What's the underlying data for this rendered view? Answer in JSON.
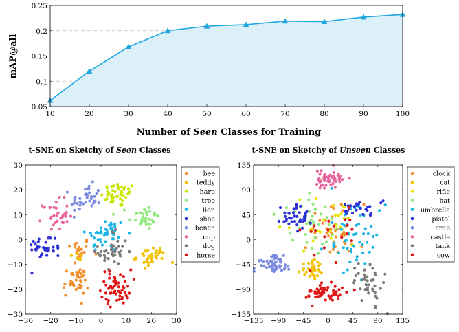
{
  "chart_data": [
    {
      "type": "area",
      "xlabel_parts": [
        "Number of ",
        "Seen",
        " Classes for Training"
      ],
      "ylabel": "mAP@all",
      "x": [
        10,
        20,
        30,
        40,
        50,
        60,
        70,
        80,
        90,
        100
      ],
      "values": [
        0.062,
        0.12,
        0.168,
        0.2,
        0.209,
        0.212,
        0.219,
        0.218,
        0.227,
        0.232
      ],
      "xlim": [
        10,
        100
      ],
      "ylim": [
        0.05,
        0.25
      ],
      "xticks": [
        "10",
        "20",
        "30",
        "40",
        "50",
        "60",
        "70",
        "80",
        "90",
        "100"
      ],
      "yticks": [
        "0.05",
        "0.1",
        "0.15",
        "0.2",
        "0.25"
      ],
      "ytick_values": [
        0.05,
        0.1,
        0.15,
        0.2,
        0.25
      ],
      "grid": "horizontal dashed",
      "colors": {
        "line": "#1fa7e0",
        "fill": "#dcf0fa"
      }
    },
    {
      "type": "scatter",
      "title_parts": [
        "t-SNE on Sketchy of ",
        "Seen",
        " Classes"
      ],
      "xlim": [
        -30,
        30
      ],
      "ylim": [
        -30,
        30
      ],
      "xticks": [
        "−30",
        "−20",
        "−10",
        "0",
        "10",
        "20",
        "30"
      ],
      "xtick_values": [
        -30,
        -20,
        -10,
        0,
        10,
        20,
        30
      ],
      "yticks": [
        "−30",
        "−20",
        "−10",
        "0",
        "10",
        "20",
        "30"
      ],
      "ytick_values": [
        -30,
        -20,
        -10,
        0,
        10,
        20,
        30
      ],
      "legend_position": "right",
      "series": [
        {
          "name": "bee",
          "color": "#f28e2b",
          "center": [
            -9,
            -4
          ],
          "spread": [
            2.5,
            2.5
          ],
          "count": 20
        },
        {
          "name": "teddy",
          "color": "#f2c200",
          "center": [
            -9,
            -7
          ],
          "spread": [
            1.5,
            1.5
          ],
          "count": 6
        },
        {
          "name": "harp",
          "color": "#c8e600",
          "center": [
            7,
            18
          ],
          "spread": [
            3.5,
            2.5
          ],
          "count": 45
        },
        {
          "name": "tree",
          "color": "#8ee87a",
          "center": [
            17,
            9
          ],
          "spread": [
            3,
            2.5
          ],
          "count": 35
        },
        {
          "name": "lion",
          "color": "#1bb5e5",
          "center": [
            2,
            2
          ],
          "spread": [
            4,
            3.5
          ],
          "count": 45
        },
        {
          "name": "shoe",
          "color": "#2b30d6",
          "center": [
            -22,
            -3
          ],
          "spread": [
            3.5,
            2.5
          ],
          "count": 35
        },
        {
          "name": "bench",
          "color": "#7b8be0",
          "center": [
            -6,
            16
          ],
          "spread": [
            3,
            3
          ],
          "count": 40
        },
        {
          "name": "cup",
          "color": "#e8659e",
          "center": [
            -18,
            10
          ],
          "spread": [
            2.5,
            3
          ],
          "count": 35
        },
        {
          "name": "dog",
          "color": "#7a7a7a",
          "center": [
            5,
            -5
          ],
          "spread": [
            3,
            4.5
          ],
          "count": 40
        },
        {
          "name": "horse",
          "color": "#e01515",
          "center": [
            6,
            -19
          ],
          "spread": [
            3,
            3.5
          ],
          "count": 55
        },
        {
          "name": "bee",
          "color": "#f28e2b",
          "center": [
            -10,
            -17
          ],
          "spread": [
            2.5,
            3
          ],
          "count": 40
        },
        {
          "name": "teddy",
          "color": "#f2c200",
          "center": [
            20,
            -7
          ],
          "spread": [
            3,
            2
          ],
          "count": 40
        }
      ]
    },
    {
      "type": "scatter",
      "title_parts": [
        "t-SNE on Sketchy of ",
        "Unseen",
        " Classes"
      ],
      "xlim": [
        -135,
        135
      ],
      "ylim": [
        -135,
        135
      ],
      "xticks": [
        "−135",
        "−90",
        "−45",
        "0",
        "45",
        "90",
        "135"
      ],
      "xtick_values": [
        -135,
        -90,
        -45,
        0,
        45,
        90,
        135
      ],
      "yticks": [
        "−135",
        "−90",
        "−45",
        "0",
        "45",
        "90",
        "135"
      ],
      "ytick_values": [
        -135,
        -90,
        -45,
        0,
        45,
        90,
        135
      ],
      "legend_position": "right",
      "series": [
        {
          "name": "clock",
          "color": "#f28e2b",
          "center": [
            10,
            15
          ],
          "spread": [
            25,
            25
          ],
          "count": 45
        },
        {
          "name": "cat",
          "color": "#f2c200",
          "center": [
            -30,
            -55
          ],
          "spread": [
            10,
            8
          ],
          "count": 35
        },
        {
          "name": "rifle",
          "color": "#e6e600",
          "center": [
            -5,
            30
          ],
          "spread": [
            35,
            25
          ],
          "count": 25
        },
        {
          "name": "hat",
          "color": "#8ee87a",
          "center": [
            -30,
            35
          ],
          "spread": [
            30,
            25
          ],
          "count": 40
        },
        {
          "name": "umbrella",
          "color": "#1bb5e5",
          "center": [
            45,
            0
          ],
          "spread": [
            30,
            30
          ],
          "count": 50
        },
        {
          "name": "pistol",
          "color": "#2b30d6",
          "center": [
            -55,
            40
          ],
          "spread": [
            15,
            10
          ],
          "count": 40
        },
        {
          "name": "crab",
          "color": "#7b8be0",
          "center": [
            -100,
            -45
          ],
          "spread": [
            15,
            8
          ],
          "count": 55
        },
        {
          "name": "castle",
          "color": "#e8659e",
          "center": [
            0,
            110
          ],
          "spread": [
            15,
            8
          ],
          "count": 50
        },
        {
          "name": "tank",
          "color": "#7a7a7a",
          "center": [
            75,
            -75
          ],
          "spread": [
            12,
            20
          ],
          "count": 45
        },
        {
          "name": "cow",
          "color": "#e01515",
          "center": [
            -5,
            -97
          ],
          "spread": [
            20,
            8
          ],
          "count": 55
        },
        {
          "name": "pistol",
          "color": "#2b30d6",
          "center": [
            60,
            55
          ],
          "spread": [
            15,
            10
          ],
          "count": 25
        },
        {
          "name": "cow",
          "color": "#e01515",
          "center": [
            10,
            15
          ],
          "spread": [
            30,
            25
          ],
          "count": 20
        }
      ]
    }
  ]
}
